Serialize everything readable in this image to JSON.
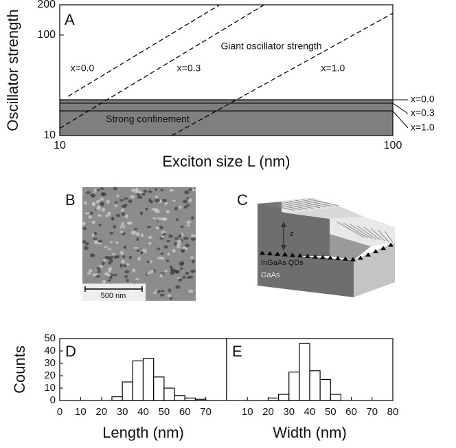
{
  "chart_data": [
    {
      "type": "line",
      "panel_label": "A",
      "xlabel": "Exciton size L (nm)",
      "ylabel": "Oscillator strength",
      "xscale": "log",
      "yscale": "log",
      "xlim": [
        10,
        100
      ],
      "ylim": [
        10,
        200
      ],
      "xticks": [
        10,
        100
      ],
      "yticks": [
        10,
        100,
        200
      ],
      "series": [
        {
          "name": "x=0.0",
          "color": "#000000",
          "dash": "dashed",
          "x": [
            10.6,
            30.2
          ],
          "values": [
            24.6,
            200
          ]
        },
        {
          "name": "x=0.3",
          "color": "#000000",
          "dash": "dashed",
          "x": [
            10,
            41.1
          ],
          "values": [
            11.8,
            200
          ]
        },
        {
          "name": "x=1.0",
          "color": "#000000",
          "dash": "dashed",
          "x": [
            21.7,
            100
          ],
          "values": [
            10,
            165
          ]
        }
      ],
      "hlines": [
        {
          "name": "x=0.0",
          "value": 22.7
        },
        {
          "name": "x=0.3",
          "value": 21.0
        },
        {
          "name": "x=1.0",
          "value": 17.6
        }
      ],
      "shade_color": "#7f7f7f",
      "annotations": [
        "Giant oscillator strength",
        "Strong confinement"
      ]
    },
    {
      "type": "histogram",
      "panel_label": "D",
      "xlabel": "Length (nm)",
      "ylabel": "Counts",
      "bins": [
        25,
        30,
        35,
        40,
        45,
        50,
        55,
        60,
        65,
        70
      ],
      "values": [
        3,
        15,
        32,
        34,
        19,
        10,
        4,
        2,
        1
      ],
      "xlim": [
        0,
        80
      ],
      "ylim": [
        0,
        50
      ],
      "xticks": [
        0,
        10,
        20,
        30,
        40,
        50,
        60,
        70
      ],
      "yticks": [
        0,
        10,
        20,
        30,
        40,
        50
      ],
      "color": "#ffffff"
    },
    {
      "type": "histogram",
      "panel_label": "E",
      "xlabel": "Width (nm)",
      "bins": [
        20,
        25,
        30,
        35,
        40,
        45,
        50,
        55
      ],
      "values": [
        2,
        5,
        23,
        46,
        24,
        17,
        5
      ],
      "xlim": [
        0,
        80
      ],
      "ylim": [
        0,
        50
      ],
      "xticks": [
        10,
        20,
        30,
        40,
        50,
        60,
        70,
        80
      ],
      "color": "#ffffff"
    }
  ],
  "panel_b": {
    "label": "B",
    "scale_bar": "500 nm"
  },
  "panel_c": {
    "label": "C",
    "height_label": "z",
    "layer_labels": [
      "InGaAs QDs",
      "GaAs"
    ]
  }
}
